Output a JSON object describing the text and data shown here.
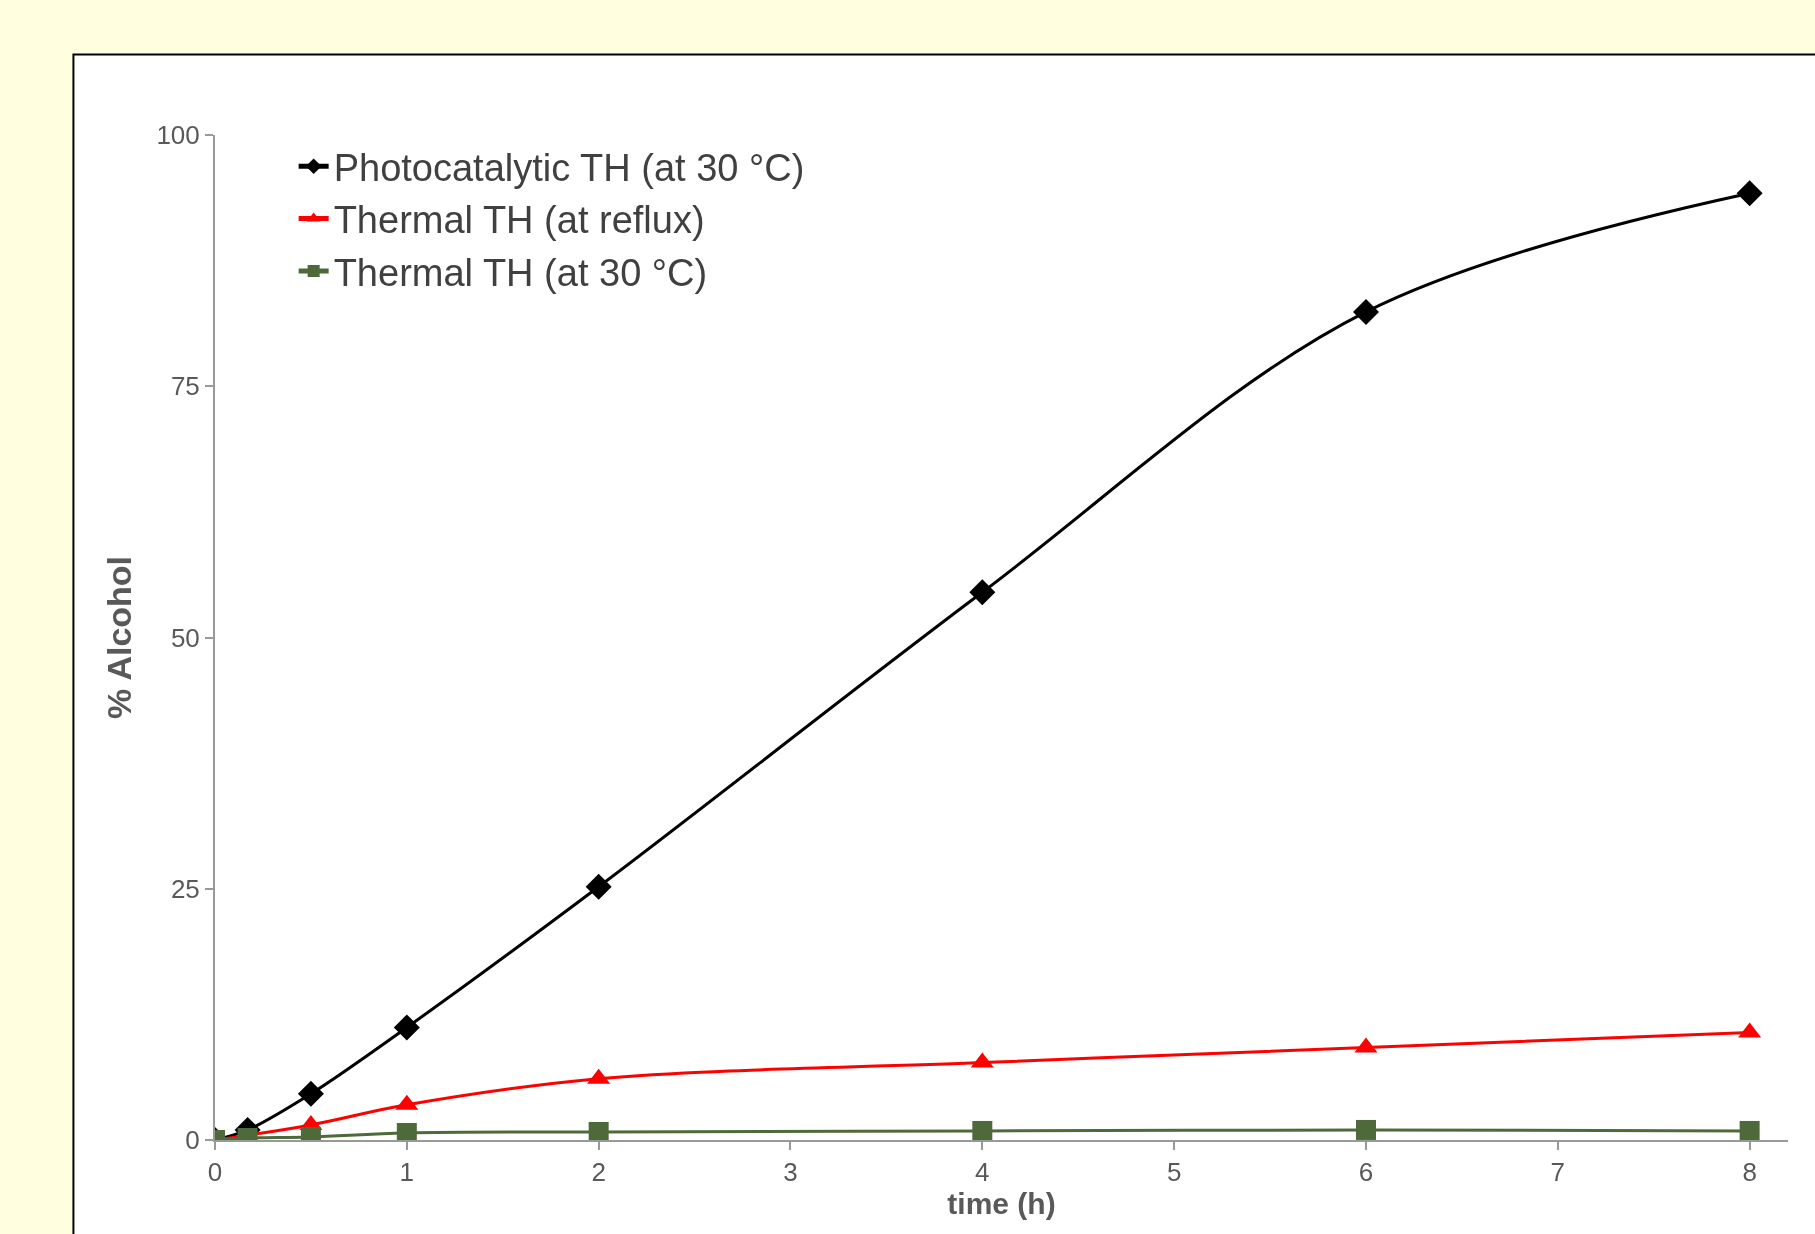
{
  "chart_data": {
    "type": "line",
    "xlabel": "time (h)",
    "ylabel": "% Alcohol",
    "x": [
      0,
      0.17,
      0.5,
      1,
      2,
      4,
      6,
      8
    ],
    "series": [
      {
        "name": "Photocatalytic TH (at 30 °C)",
        "color": "#000000",
        "marker": "diamond",
        "values": [
          0,
          1,
          4.6,
          11.2,
          25.2,
          54.5,
          82.4,
          94.2
        ]
      },
      {
        "name": "Thermal TH (at reflux)",
        "color": "#ff0000",
        "marker": "triangle",
        "values": [
          0,
          null,
          1.5,
          3.5,
          6.1,
          7.7,
          9.2,
          10.7
        ]
      },
      {
        "name": "Thermal TH (at 30 °C)",
        "color": "#4f6a3a",
        "marker": "square",
        "values": [
          0,
          0.2,
          0.3,
          0.7,
          0.8,
          0.9,
          1.0,
          0.9
        ]
      }
    ],
    "xlim": [
      0,
      8.2
    ],
    "xticks": [
      0,
      1,
      2,
      3,
      4,
      5,
      6,
      7,
      8
    ],
    "ylim": [
      0,
      100
    ],
    "yticks": [
      0,
      25,
      50,
      75,
      100
    ],
    "legend": "top left",
    "line_style": "solid"
  }
}
